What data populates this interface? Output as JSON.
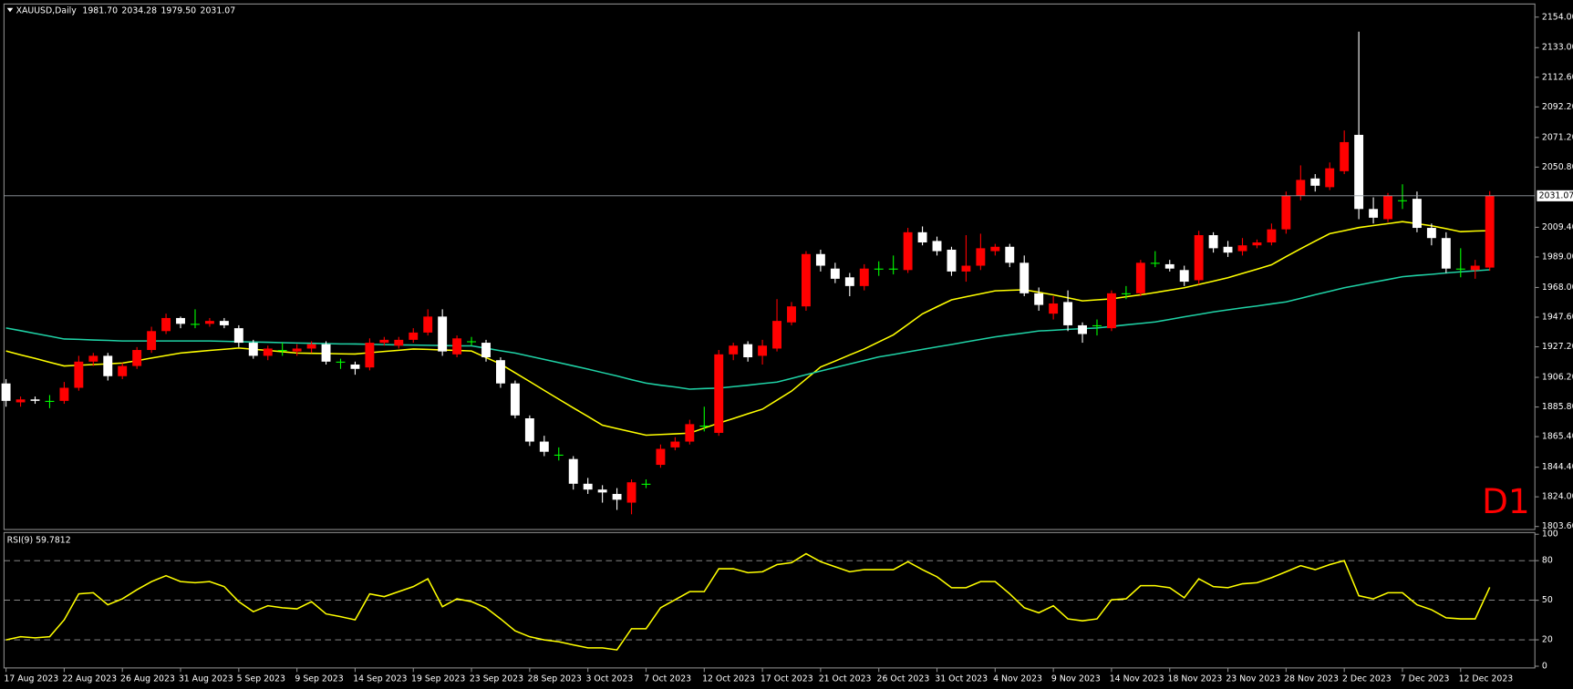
{
  "chart_data": [
    {
      "type": "candlestick",
      "title": "XAUUSD,Daily",
      "ohlc_labels": [
        "1981.70",
        "2034.28",
        "1979.50",
        "2031.07"
      ],
      "timeframe_label": "D1",
      "categories": [
        "17 Aug 2023",
        null,
        null,
        null,
        "22 Aug 2023",
        null,
        null,
        null,
        "26 Aug 2023",
        null,
        null,
        null,
        "31 Aug 2023",
        null,
        null,
        null,
        "5 Sep 2023",
        null,
        null,
        null,
        "9 Sep 2023",
        null,
        null,
        null,
        "14 Sep 2023",
        null,
        null,
        null,
        "19 Sep 2023",
        null,
        null,
        null,
        "23 Sep 2023",
        null,
        null,
        null,
        "28 Sep 2023",
        null,
        null,
        null,
        "3 Oct 2023",
        null,
        null,
        null,
        "7 Oct 2023",
        null,
        null,
        null,
        "12 Oct 2023",
        null,
        null,
        null,
        "17 Oct 2023",
        null,
        null,
        null,
        "21 Oct 2023",
        null,
        null,
        null,
        "26 Oct 2023",
        null,
        null,
        null,
        "31 Oct 2023",
        null,
        null,
        null,
        "4 Nov 2023",
        null,
        null,
        null,
        "9 Nov 2023",
        null,
        null,
        null,
        "14 Nov 2023",
        null,
        null,
        null,
        "18 Nov 2023",
        null,
        null,
        null,
        "23 Nov 2023",
        null,
        null,
        null,
        "28 Nov 2023",
        null,
        null,
        null,
        "2 Dec 2023",
        null,
        null,
        null,
        "7 Dec 2023",
        null,
        null,
        null,
        "12 Dec 2023",
        null,
        null
      ],
      "ohlc": {
        "open": [
          1902,
          1889,
          1891,
          1890,
          1890,
          1899,
          1917,
          1921,
          1907,
          1914,
          1925,
          1938,
          1947,
          1943,
          1943,
          1945,
          1940,
          1930,
          1921,
          1925,
          1924,
          1926,
          1929,
          1917,
          1915,
          1913,
          1930,
          1928,
          1932,
          1937,
          1948,
          1922,
          1931,
          1930,
          1918,
          1902,
          1878,
          1862,
          1853,
          1850,
          1833,
          1829,
          1826,
          1820,
          1833,
          1846,
          1858,
          1862,
          1873,
          1868,
          1922,
          1929,
          1921,
          1926,
          1944,
          1955,
          1991,
          1981,
          1975,
          1969,
          1981,
          1981,
          1980,
          2006,
          2000,
          1994,
          1979,
          1983,
          1993,
          1996,
          1985,
          1964,
          1950,
          1958,
          1942,
          1942,
          1940,
          1964,
          1964,
          1985,
          1984,
          1980,
          1973,
          2004,
          1996,
          1993,
          1997,
          1999,
          2008,
          2031,
          2043,
          2037,
          2048,
          2073,
          2022,
          2015,
          2028,
          2029,
          2009,
          2002,
          1981,
          1980,
          1981.7
        ],
        "high": [
          1905,
          1893,
          1893,
          1894,
          1903,
          1921,
          1923,
          1923,
          1916,
          1927,
          1941,
          1950,
          1948,
          1953,
          1947,
          1947,
          1942,
          1932,
          1928,
          1930,
          1929,
          1931,
          1931,
          1919,
          1917,
          1933,
          1934,
          1934,
          1940,
          1953,
          1953,
          1935,
          1934,
          1932,
          1920,
          1904,
          1880,
          1866,
          1858,
          1852,
          1837,
          1832,
          1830,
          1836,
          1836,
          1860,
          1865,
          1877,
          1886,
          1925,
          1930,
          1931,
          1932,
          1960,
          1958,
          1993,
          1994,
          1985,
          1978,
          1984,
          1986,
          1990,
          2009,
          2010,
          2003,
          1996,
          2004,
          2005,
          1998,
          1998,
          1990,
          1968,
          1962,
          1966,
          1944,
          1946,
          1966,
          1969,
          1987,
          1993,
          1987,
          1983,
          2007,
          2006,
          2000,
          2002,
          2001,
          2012,
          2034,
          2052,
          2046,
          2054,
          2076,
          2144,
          2030,
          2033,
          2039,
          2034,
          2012,
          2006,
          1995,
          1987,
          2034.28
        ],
        "low": [
          1886,
          1886,
          1888,
          1885,
          1888,
          1897,
          1914,
          1904,
          1905,
          1912,
          1923,
          1936,
          1940,
          1940,
          1941,
          1940,
          1927,
          1919,
          1918,
          1921,
          1921,
          1923,
          1915,
          1912,
          1908,
          1911,
          1928,
          1926,
          1930,
          1935,
          1921,
          1920,
          1928,
          1917,
          1899,
          1878,
          1859,
          1852,
          1849,
          1829,
          1826,
          1820,
          1815,
          1812,
          1830,
          1844,
          1856,
          1860,
          1869,
          1866,
          1918,
          1917,
          1915,
          1924,
          1942,
          1952,
          1979,
          1971,
          1962,
          1966,
          1976,
          1977,
          1978,
          1997,
          1990,
          1976,
          1972,
          1980,
          1990,
          1982,
          1962,
          1952,
          1946,
          1938,
          1930,
          1935,
          1938,
          1960,
          1962,
          1982,
          1979,
          1969,
          1970,
          1992,
          1989,
          1990,
          1995,
          1997,
          2005,
          2028,
          2034,
          2035,
          2046,
          2015,
          2012,
          2013,
          2022,
          2006,
          1997,
          1978,
          1975,
          1974,
          1979.5
        ],
        "close": [
          1890,
          1891,
          1890,
          1890,
          1899,
          1917,
          1921,
          1907,
          1914,
          1925,
          1938,
          1947,
          1943,
          1943,
          1945,
          1942,
          1930,
          1921,
          1926,
          1925,
          1926,
          1929,
          1917,
          1917,
          1912,
          1930,
          1932,
          1932,
          1937,
          1948,
          1924,
          1933,
          1931,
          1920,
          1902,
          1880,
          1862,
          1855,
          1853,
          1833,
          1829,
          1827,
          1822,
          1834,
          1833,
          1857,
          1862,
          1874,
          1873,
          1922,
          1928,
          1920,
          1928,
          1945,
          1955,
          1991,
          1983,
          1974,
          1969,
          1981,
          1981,
          1981,
          2006,
          1999,
          1993,
          1979,
          1983,
          1995,
          1996,
          1985,
          1964,
          1956,
          1957,
          1942,
          1936,
          1942,
          1964,
          1964,
          1985,
          1985,
          1981,
          1972,
          2004,
          1995,
          1992,
          1997,
          1999,
          2008,
          2031,
          2042,
          2038,
          2050,
          2068,
          2022,
          2016,
          2031,
          2028,
          2009,
          2002,
          1981,
          1981,
          1983,
          2031.07
        ]
      },
      "up_color": "#ff0000",
      "down_color": "#ffffff",
      "doji_color": "#00ff00",
      "series": [
        {
          "color": "#ffff00",
          "values": [
            1924.3,
            1921.7,
            1919.2,
            1916.6,
            1914.0,
            1914.5,
            1915.0,
            1915.5,
            1916.0,
            1917.7,
            1919.5,
            1921.2,
            1922.9,
            1923.8,
            1924.7,
            1925.5,
            1926.4,
            1925.5,
            1924.7,
            1923.8,
            1922.9,
            1922.7,
            1922.6,
            1922.4,
            1922.2,
            1923.1,
            1924.0,
            1924.8,
            1925.7,
            1925.4,
            1925.0,
            1924.7,
            1924.3,
            1919.8,
            1915.3,
            1909.3,
            1903.3,
            1897.2,
            1891.2,
            1885.2,
            1879.3,
            1873.3,
            1871.0,
            1868.7,
            1866.4,
            1866.9,
            1867.3,
            1867.8,
            1871.3,
            1874.7,
            1877.9,
            1881.1,
            1884.3,
            1890.5,
            1896.7,
            1905.0,
            1913.3,
            1917.4,
            1921.6,
            1925.7,
            1930.6,
            1935.4,
            1942.6,
            1949.8,
            1954.7,
            1959.5,
            1961.6,
            1963.6,
            1965.7,
            1966.1,
            1966.4,
            1964.7,
            1962.9,
            1960.9,
            1958.8,
            1959.5,
            1960.2,
            1961.6,
            1962.9,
            1964.5,
            1966.2,
            1967.8,
            1970.1,
            1972.4,
            1974.7,
            1977.7,
            1980.6,
            1983.6,
            1989.2,
            1994.7,
            1999.9,
            2005.0,
            2007.1,
            2009.2,
            2010.6,
            2011.9,
            2013.3,
            2011.9,
            2010.5,
            2008.5,
            2006.4,
            2006.8,
            2007.1
          ]
        },
        {
          "color": "#1fd1a5",
          "values": [
            1940.2,
            1938.3,
            1936.4,
            1934.5,
            1932.6,
            1932.3,
            1931.9,
            1931.6,
            1931.2,
            1931.2,
            1931.2,
            1931.2,
            1931.2,
            1931.2,
            1931.2,
            1931.0,
            1930.7,
            1930.5,
            1930.3,
            1930.0,
            1929.8,
            1929.6,
            1929.4,
            1929.2,
            1929.1,
            1928.9,
            1928.7,
            1928.5,
            1928.4,
            1928.2,
            1928.1,
            1927.9,
            1927.8,
            1926.2,
            1924.5,
            1922.9,
            1920.7,
            1918.5,
            1916.3,
            1914.1,
            1911.9,
            1909.5,
            1907.1,
            1904.6,
            1902.2,
            1900.8,
            1899.5,
            1898.1,
            1898.5,
            1898.8,
            1899.8,
            1900.8,
            1901.9,
            1902.9,
            1905.4,
            1908.0,
            1910.5,
            1912.9,
            1915.4,
            1917.8,
            1920.2,
            1921.9,
            1923.7,
            1925.4,
            1927.1,
            1928.8,
            1930.6,
            1932.3,
            1934.0,
            1935.4,
            1936.7,
            1938.1,
            1938.6,
            1939.2,
            1939.7,
            1940.2,
            1941.2,
            1942.3,
            1943.3,
            1944.3,
            1946.0,
            1947.8,
            1949.5,
            1951.2,
            1952.6,
            1954.0,
            1955.3,
            1956.7,
            1958.1,
            1960.5,
            1963.0,
            1965.4,
            1967.8,
            1969.7,
            1971.6,
            1973.5,
            1975.4,
            1976.3,
            1977.1,
            1978.0,
            1978.8,
            1979.5,
            1980.2
          ]
        }
      ],
      "last_price": {
        "value": 2031.07,
        "label": "2031.07"
      },
      "ylim": [
        1801.5,
        2163
      ],
      "yticks": [
        {
          "value": 2154,
          "label": "2154.00"
        },
        {
          "value": 2133,
          "label": "2133.00"
        },
        {
          "value": 2112.6,
          "label": "2112.60"
        },
        {
          "value": 2092.2,
          "label": "2092.20"
        },
        {
          "value": 2071.2,
          "label": "2071.20"
        },
        {
          "value": 2050.8,
          "label": "2050.80"
        },
        {
          "value": 2009.4,
          "label": "2009.40"
        },
        {
          "value": 1989,
          "label": "1989.00"
        },
        {
          "value": 1968,
          "label": "1968.00"
        },
        {
          "value": 1947.6,
          "label": "1947.60"
        },
        {
          "value": 1927.2,
          "label": "1927.20"
        },
        {
          "value": 1906.2,
          "label": "1906.20"
        },
        {
          "value": 1885.8,
          "label": "1885.80"
        },
        {
          "value": 1865.4,
          "label": "1865.40"
        },
        {
          "value": 1844.4,
          "label": "1844.40"
        },
        {
          "value": 1824,
          "label": "1824.00"
        },
        {
          "value": 1803.6,
          "label": "1803.60"
        }
      ],
      "grid": false
    },
    {
      "type": "line",
      "title": "RSI(9) 59.7812",
      "series": [
        {
          "color": "#ffff00",
          "values": [
            20.0,
            22.3,
            21.5,
            22.3,
            35.2,
            54.9,
            55.7,
            46.6,
            51.1,
            58.0,
            64.1,
            68.6,
            64.1,
            63.3,
            64.1,
            60.3,
            48.9,
            41.3,
            45.8,
            44.3,
            43.5,
            48.9,
            39.7,
            37.5,
            35.2,
            54.9,
            52.7,
            56.5,
            60.3,
            66.3,
            45.1,
            51.1,
            48.9,
            44.3,
            35.9,
            26.8,
            22.3,
            20.0,
            18.5,
            16.2,
            13.9,
            13.9,
            12.4,
            28.4,
            28.4,
            44.3,
            50.4,
            56.5,
            56.5,
            73.9,
            73.9,
            70.9,
            71.6,
            77.0,
            78.5,
            85.3,
            79.2,
            75.4,
            71.6,
            73.2,
            73.2,
            73.2,
            79.2,
            73.2,
            67.8,
            59.5,
            59.5,
            64.1,
            64.1,
            54.9,
            44.3,
            40.5,
            45.8,
            35.9,
            34.4,
            35.9,
            50.4,
            51.1,
            61.0,
            61.0,
            59.5,
            51.9,
            66.3,
            60.3,
            59.5,
            62.5,
            63.3,
            67.1,
            71.6,
            76.2,
            73.2,
            77.0,
            80.0,
            53.4,
            51.1,
            55.7,
            55.7,
            46.6,
            42.8,
            36.7,
            35.9,
            35.9,
            59.7812
          ]
        }
      ],
      "levels": [
        20,
        50,
        80
      ],
      "ylim": [
        -1.3,
        101.3
      ],
      "yticks": [
        100,
        80,
        50,
        20,
        0
      ],
      "grid": false
    }
  ]
}
